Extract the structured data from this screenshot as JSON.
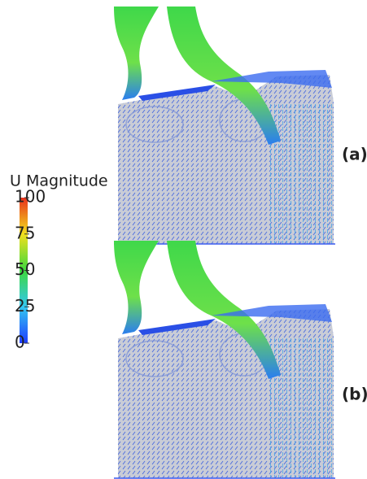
{
  "colorbar": {
    "title": "U Magnitude",
    "range": [
      0,
      100
    ],
    "ticks": [
      0,
      25,
      50,
      75,
      100
    ]
  },
  "panels": [
    {
      "label": "(a)"
    },
    {
      "label": "(b)"
    }
  ]
}
